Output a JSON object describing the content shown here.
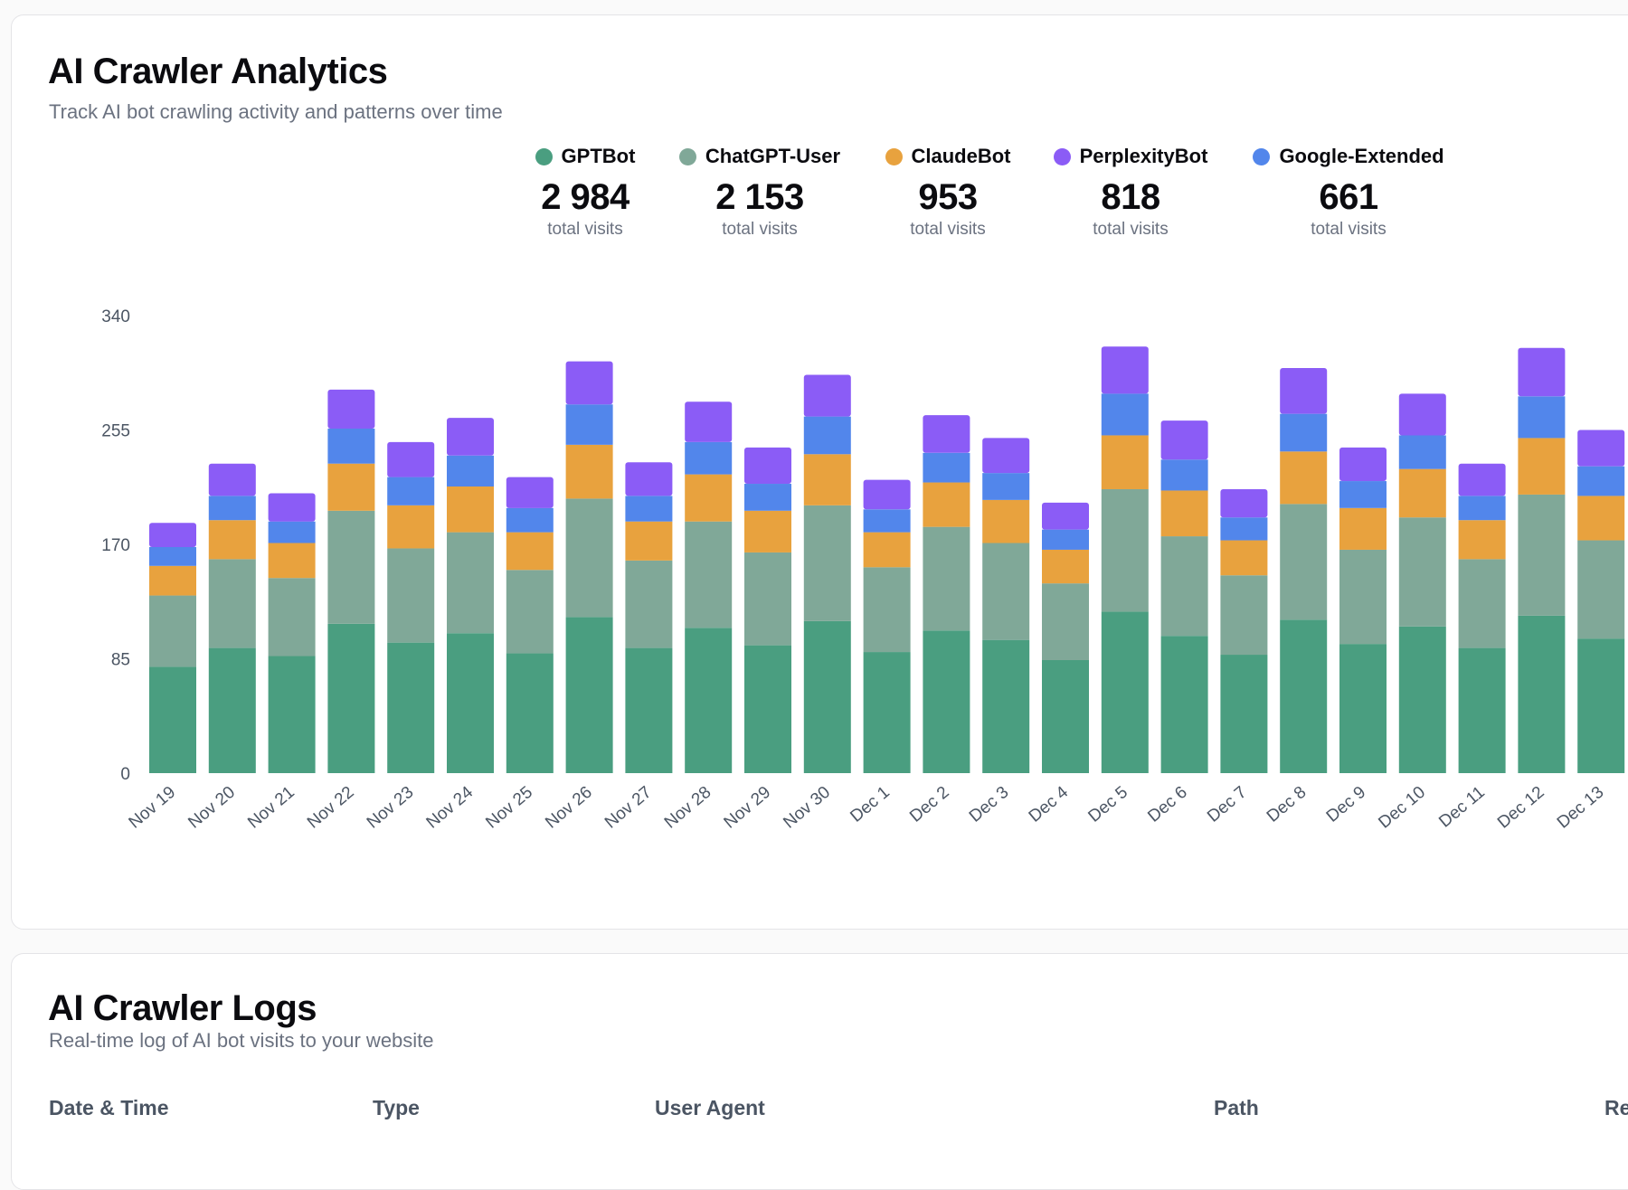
{
  "analytics": {
    "title": "AI Crawler Analytics",
    "subtitle": "Track AI bot crawling activity and patterns over time"
  },
  "legend": [
    {
      "name": "GPTBot",
      "total": "2 984",
      "caption": "total visits",
      "color": "#4a9e80"
    },
    {
      "name": "ChatGPT-User",
      "total": "2 153",
      "caption": "total visits",
      "color": "#80a898"
    },
    {
      "name": "ClaudeBot",
      "total": "953",
      "caption": "total visits",
      "color": "#e8a23e"
    },
    {
      "name": "PerplexityBot",
      "total": "818",
      "caption": "total visits",
      "color": "#8b5cf6"
    },
    {
      "name": "Google-Extended",
      "total": "661",
      "caption": "total visits",
      "color": "#5286eb"
    }
  ],
  "chart_data": {
    "type": "bar",
    "stacked": true,
    "title": "",
    "xlabel": "",
    "ylabel": "",
    "ylim": [
      0,
      340
    ],
    "yticks": [
      0,
      85,
      170,
      255,
      340
    ],
    "grid": false,
    "categories": [
      "Nov 19",
      "Nov 20",
      "Nov 21",
      "Nov 22",
      "Nov 23",
      "Nov 24",
      "Nov 25",
      "Nov 26",
      "Nov 27",
      "Nov 28",
      "Nov 29",
      "Nov 30",
      "Dec 1",
      "Dec 2",
      "Dec 3",
      "Dec 4",
      "Dec 5",
      "Dec 6",
      "Dec 7",
      "Dec 8",
      "Dec 9",
      "Dec 10",
      "Dec 11",
      "Dec 12",
      "Dec 13"
    ],
    "series": [
      {
        "name": "GPTBot",
        "color": "#4a9e80",
        "values": [
          79,
          93,
          87,
          111,
          97,
          104,
          89,
          116,
          93,
          108,
          95,
          113,
          90,
          106,
          99,
          84,
          120,
          102,
          88,
          114,
          96,
          109,
          93,
          117,
          100
        ]
      },
      {
        "name": "ChatGPT-User",
        "color": "#80a898",
        "values": [
          53,
          66,
          58,
          84,
          70,
          75,
          62,
          88,
          65,
          79,
          69,
          86,
          63,
          77,
          72,
          57,
          91,
          74,
          59,
          86,
          70,
          81,
          66,
          90,
          73
        ]
      },
      {
        "name": "ClaudeBot",
        "color": "#e8a23e",
        "values": [
          22,
          29,
          26,
          35,
          32,
          34,
          28,
          40,
          29,
          35,
          31,
          38,
          26,
          33,
          32,
          25,
          40,
          34,
          26,
          39,
          31,
          36,
          29,
          42,
          33
        ]
      },
      {
        "name": "Google-Extended",
        "color": "#5286eb",
        "values": [
          14,
          18,
          16,
          26,
          21,
          23,
          18,
          30,
          19,
          24,
          20,
          28,
          17,
          22,
          20,
          15,
          31,
          23,
          17,
          28,
          20,
          25,
          18,
          31,
          22
        ]
      },
      {
        "name": "PerplexityBot",
        "color": "#8b5cf6",
        "values": [
          18,
          24,
          21,
          29,
          26,
          28,
          23,
          32,
          25,
          30,
          27,
          31,
          22,
          28,
          26,
          20,
          35,
          29,
          21,
          34,
          25,
          31,
          24,
          36,
          27
        ]
      }
    ]
  },
  "logs": {
    "title": "AI Crawler Logs",
    "subtitle": "Real-time log of AI bot visits to your website",
    "columns": [
      "Date & Time",
      "Type",
      "User Agent",
      "Path",
      "Re"
    ]
  }
}
